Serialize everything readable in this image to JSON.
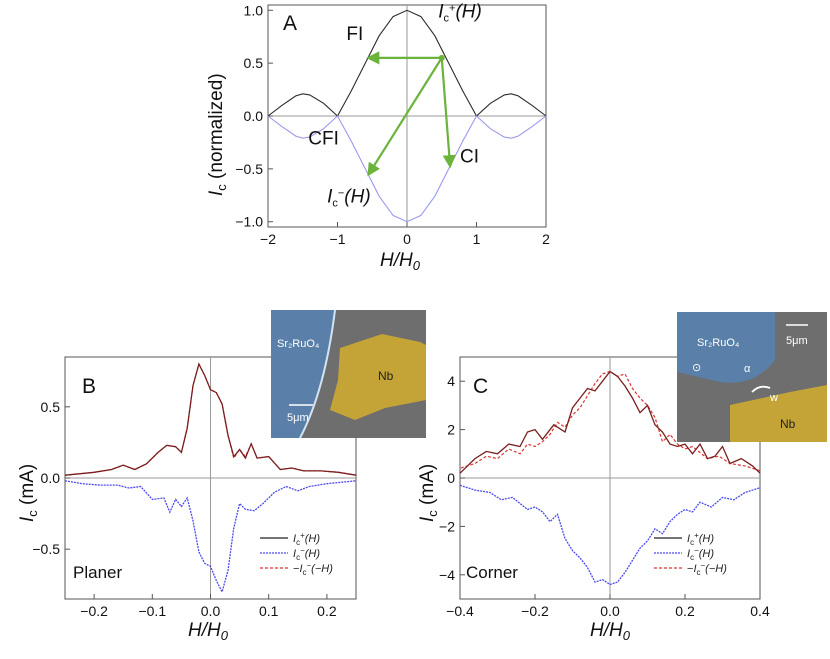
{
  "colors": {
    "plus": "#2b2b2b",
    "minus": "#4a4aee",
    "minus_light": "#9a9aee",
    "mirror": "#dd3333",
    "arrow": "#6bb33b",
    "nb": "#c4a437",
    "sr": "#5a7fa8",
    "sem": "#6e6e6e"
  },
  "chart_data": [
    {
      "panel": "A",
      "type": "line",
      "xlabel_main": "H/H",
      "xlabel_sub": "0",
      "ylabel_main": "I",
      "ylabel_sub": "c",
      "ylabel_rest": " (normalized)",
      "xlim": [
        -2,
        2
      ],
      "ylim": [
        -1.05,
        1.05
      ],
      "xticks": [
        -2,
        -1,
        0,
        1,
        2
      ],
      "xtick_labels": [
        "−2",
        "−1",
        "0",
        "1",
        "2"
      ],
      "yticks": [
        1.0,
        0.5,
        0.0,
        -0.5,
        -1.0
      ],
      "ytick_labels": [
        "1.0",
        "0.5",
        "0.0",
        "−0.5",
        "−1.0"
      ],
      "series": [
        {
          "name": "Ic+(H)",
          "x": [
            -2,
            -1.8,
            -1.6,
            -1.5,
            -1.4,
            -1.2,
            -1.0,
            -0.8,
            -0.6,
            -0.4,
            -0.2,
            0,
            0.2,
            0.4,
            0.6,
            0.8,
            1.0,
            1.2,
            1.4,
            1.5,
            1.6,
            1.8,
            2
          ],
          "y": [
            0,
            0.1,
            0.19,
            0.21,
            0.2,
            0.12,
            0,
            0.24,
            0.5,
            0.76,
            0.94,
            1.0,
            0.94,
            0.76,
            0.5,
            0.24,
            0,
            0.12,
            0.2,
            0.21,
            0.19,
            0.1,
            0
          ]
        },
        {
          "name": "Ic−(H)",
          "x": [
            -2,
            -1.8,
            -1.6,
            -1.5,
            -1.4,
            -1.2,
            -1.0,
            -0.8,
            -0.6,
            -0.4,
            -0.2,
            0,
            0.2,
            0.4,
            0.6,
            0.8,
            1.0,
            1.2,
            1.4,
            1.5,
            1.6,
            1.8,
            2
          ],
          "y": [
            0,
            -0.1,
            -0.19,
            -0.21,
            -0.2,
            -0.12,
            0,
            -0.24,
            -0.5,
            -0.76,
            -0.94,
            -1.0,
            -0.94,
            -0.76,
            -0.5,
            -0.24,
            0,
            -0.12,
            -0.2,
            -0.21,
            -0.19,
            -0.1,
            0
          ]
        }
      ],
      "curve_labels": [
        {
          "main": "I",
          "sub": "c",
          "sup": "+",
          "rest": "(H)",
          "x": 0.45,
          "y": 0.93
        },
        {
          "main": "I",
          "sub": "c",
          "sup": "−",
          "rest": "(H)",
          "x": -1.15,
          "y": -0.82
        }
      ],
      "annotations": [
        {
          "text": "FI",
          "x": -0.75,
          "y": 0.72
        },
        {
          "text": "CFI",
          "x": -1.2,
          "y": -0.27
        },
        {
          "text": "CI",
          "x": 0.9,
          "y": -0.44
        }
      ],
      "arrows": [
        {
          "from": [
            0.5,
            0.55
          ],
          "to": [
            -0.55,
            0.55
          ]
        },
        {
          "from": [
            0.5,
            0.55
          ],
          "to": [
            0.62,
            -0.47
          ]
        },
        {
          "from": [
            0.5,
            0.55
          ],
          "to": [
            -0.55,
            -0.55
          ]
        }
      ]
    },
    {
      "panel": "B",
      "type": "line",
      "mode_label": "Planer",
      "xlabel_main": "H/H",
      "xlabel_sub": "0",
      "ylabel_main": "I",
      "ylabel_sub": "c",
      "ylabel_rest": " (mA)",
      "xlim": [
        -0.25,
        0.25
      ],
      "ylim": [
        -0.85,
        0.85
      ],
      "xticks": [
        -0.2,
        -0.1,
        0.0,
        0.1,
        0.2
      ],
      "xtick_labels": [
        "−0.2",
        "−0.1",
        "0.0",
        "0.1",
        "0.2"
      ],
      "yticks": [
        0.5,
        0.0,
        -0.5
      ],
      "ytick_labels": [
        "0.5",
        "0.0",
        "−0.5"
      ],
      "legend": [
        {
          "main": "I",
          "sub": "c",
          "sup": "+",
          "rest": "(H)",
          "style": "solid-black"
        },
        {
          "main": "I",
          "sub": "c",
          "sup": "−",
          "rest": "(H)",
          "style": "blue"
        },
        {
          "pre": "−",
          "main": "I",
          "sub": "c",
          "sup": "−",
          "rest": "(−H)",
          "style": "red-dash"
        }
      ],
      "series": [
        {
          "name": "Ic+(H)",
          "x": [
            -0.25,
            -0.2,
            -0.17,
            -0.15,
            -0.13,
            -0.11,
            -0.09,
            -0.075,
            -0.06,
            -0.05,
            -0.04,
            -0.03,
            -0.02,
            -0.01,
            0.0,
            0.01,
            0.02,
            0.03,
            0.04,
            0.05,
            0.06,
            0.07,
            0.08,
            0.1,
            0.12,
            0.14,
            0.16,
            0.19,
            0.22,
            0.25
          ],
          "y": [
            0.02,
            0.04,
            0.06,
            0.09,
            0.06,
            0.1,
            0.18,
            0.23,
            0.22,
            0.18,
            0.35,
            0.65,
            0.8,
            0.72,
            0.62,
            0.6,
            0.52,
            0.3,
            0.15,
            0.2,
            0.14,
            0.24,
            0.14,
            0.15,
            0.06,
            0.07,
            0.05,
            0.05,
            0.04,
            0.02
          ]
        },
        {
          "name": "Ic−(H)",
          "x": [
            -0.25,
            -0.22,
            -0.19,
            -0.16,
            -0.14,
            -0.12,
            -0.1,
            -0.08,
            -0.07,
            -0.06,
            -0.05,
            -0.04,
            -0.03,
            -0.02,
            -0.01,
            0.0,
            0.01,
            0.02,
            0.03,
            0.04,
            0.05,
            0.06,
            0.075,
            0.09,
            0.11,
            0.13,
            0.15,
            0.17,
            0.2,
            0.25
          ],
          "y": [
            -0.02,
            -0.04,
            -0.05,
            -0.05,
            -0.07,
            -0.06,
            -0.15,
            -0.14,
            -0.24,
            -0.15,
            -0.2,
            -0.14,
            -0.3,
            -0.52,
            -0.6,
            -0.62,
            -0.72,
            -0.8,
            -0.65,
            -0.35,
            -0.18,
            -0.22,
            -0.23,
            -0.18,
            -0.1,
            -0.06,
            -0.09,
            -0.06,
            -0.04,
            -0.02
          ]
        }
      ],
      "inset_labels": [
        "Sr₂RuO₄",
        "Nb",
        "5μm"
      ]
    },
    {
      "panel": "C",
      "type": "line",
      "mode_label": "Corner",
      "xlabel_main": "H/H",
      "xlabel_sub": "0",
      "ylabel_main": "I",
      "ylabel_sub": "c",
      "ylabel_rest": " (mA)",
      "xlim": [
        -0.4,
        0.4
      ],
      "ylim": [
        -5,
        5
      ],
      "xticks": [
        -0.4,
        -0.2,
        0.0,
        0.2,
        0.4
      ],
      "xtick_labels": [
        "−0.4",
        "−0.2",
        "0.0",
        "0.2",
        "0.4"
      ],
      "yticks": [
        4,
        2,
        0,
        -2,
        -4
      ],
      "ytick_labels": [
        "4",
        "2",
        "0",
        "−2",
        "−4"
      ],
      "legend": [
        {
          "main": "I",
          "sub": "c",
          "sup": "+",
          "rest": "(H)",
          "style": "solid-black"
        },
        {
          "main": "I",
          "sub": "c",
          "sup": "−",
          "rest": "(H)",
          "style": "blue"
        },
        {
          "pre": "−",
          "main": "I",
          "sub": "c",
          "sup": "−",
          "rest": "(−H)",
          "style": "red-dash"
        }
      ],
      "series": [
        {
          "name": "Ic+(H)",
          "x": [
            -0.4,
            -0.36,
            -0.33,
            -0.3,
            -0.27,
            -0.24,
            -0.22,
            -0.2,
            -0.18,
            -0.15,
            -0.12,
            -0.1,
            -0.08,
            -0.06,
            -0.04,
            -0.02,
            0.0,
            0.02,
            0.04,
            0.06,
            0.08,
            0.1,
            0.12,
            0.14,
            0.16,
            0.18,
            0.2,
            0.22,
            0.24,
            0.26,
            0.28,
            0.3,
            0.32,
            0.35,
            0.38,
            0.4
          ],
          "y": [
            0.2,
            0.8,
            1.1,
            1.0,
            1.4,
            1.3,
            1.9,
            2.0,
            1.6,
            2.2,
            1.9,
            2.9,
            3.3,
            3.7,
            3.6,
            4.0,
            4.4,
            4.2,
            3.8,
            3.3,
            2.7,
            3.0,
            2.2,
            1.9,
            1.4,
            1.3,
            1.4,
            1.0,
            1.4,
            0.8,
            0.9,
            1.3,
            0.6,
            0.8,
            0.5,
            0.2
          ]
        },
        {
          "name": "Ic−(H)",
          "x": [
            -0.4,
            -0.36,
            -0.32,
            -0.29,
            -0.26,
            -0.22,
            -0.2,
            -0.18,
            -0.16,
            -0.14,
            -0.12,
            -0.1,
            -0.08,
            -0.06,
            -0.04,
            -0.02,
            0.0,
            0.02,
            0.04,
            0.06,
            0.08,
            0.1,
            0.12,
            0.14,
            0.16,
            0.18,
            0.2,
            0.22,
            0.24,
            0.27,
            0.3,
            0.33,
            0.36,
            0.4
          ],
          "y": [
            -0.3,
            -0.5,
            -0.6,
            -0.9,
            -0.8,
            -1.3,
            -1.2,
            -1.4,
            -1.8,
            -1.5,
            -2.5,
            -3.0,
            -3.3,
            -3.7,
            -4.3,
            -4.2,
            -4.4,
            -4.3,
            -3.9,
            -3.4,
            -2.9,
            -2.6,
            -2.1,
            -2.3,
            -1.8,
            -1.5,
            -1.3,
            -1.4,
            -1.0,
            -1.2,
            -0.8,
            -0.9,
            -0.6,
            -0.4
          ]
        }
      ],
      "inset_labels": [
        "Sr₂RuO₄",
        "Nb",
        "5μm",
        "α",
        "w",
        "⊙"
      ]
    }
  ]
}
